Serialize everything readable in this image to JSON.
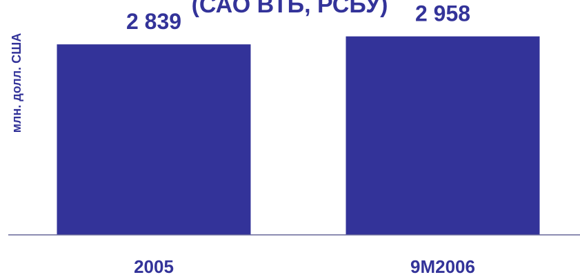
{
  "chart_data": {
    "type": "bar",
    "title": "(САО ВТБ, РСБУ)",
    "ylabel": "млн. долл. США",
    "xlabel": "",
    "categories": [
      "2005",
      "9M2006"
    ],
    "values": [
      2839,
      2958
    ],
    "value_labels": [
      "2 839",
      "2 958"
    ],
    "ylim": [
      0,
      3500
    ],
    "grid": false,
    "legend": "none",
    "bar_color": "#333399",
    "text_color": "#333399",
    "axis_color": "#666699"
  }
}
